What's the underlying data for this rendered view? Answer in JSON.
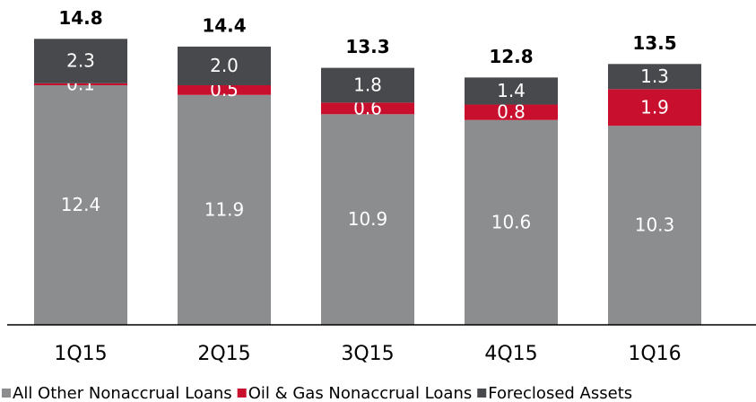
{
  "chart_data": {
    "type": "stacked_bar",
    "categories": [
      "1Q15",
      "2Q15",
      "3Q15",
      "4Q15",
      "1Q16"
    ],
    "series": [
      {
        "name": "All Other Nonaccrual Loans",
        "color": "#8c8d8f",
        "values": [
          12.4,
          11.9,
          10.9,
          10.6,
          10.3
        ]
      },
      {
        "name": "Oil & Gas Nonaccrual Loans",
        "color": "#c8102e",
        "values": [
          0.1,
          0.5,
          0.6,
          0.8,
          1.9
        ]
      },
      {
        "name": "Foreclosed Assets",
        "color": "#48494d",
        "values": [
          2.3,
          2.0,
          1.8,
          1.4,
          1.3
        ],
        "value_labels": [
          "2.3",
          "2.0",
          "1.8",
          "1.4",
          "1.3"
        ]
      }
    ],
    "totals": [
      14.8,
      14.4,
      13.3,
      12.8,
      13.5
    ],
    "ylim": [
      0,
      15
    ]
  }
}
